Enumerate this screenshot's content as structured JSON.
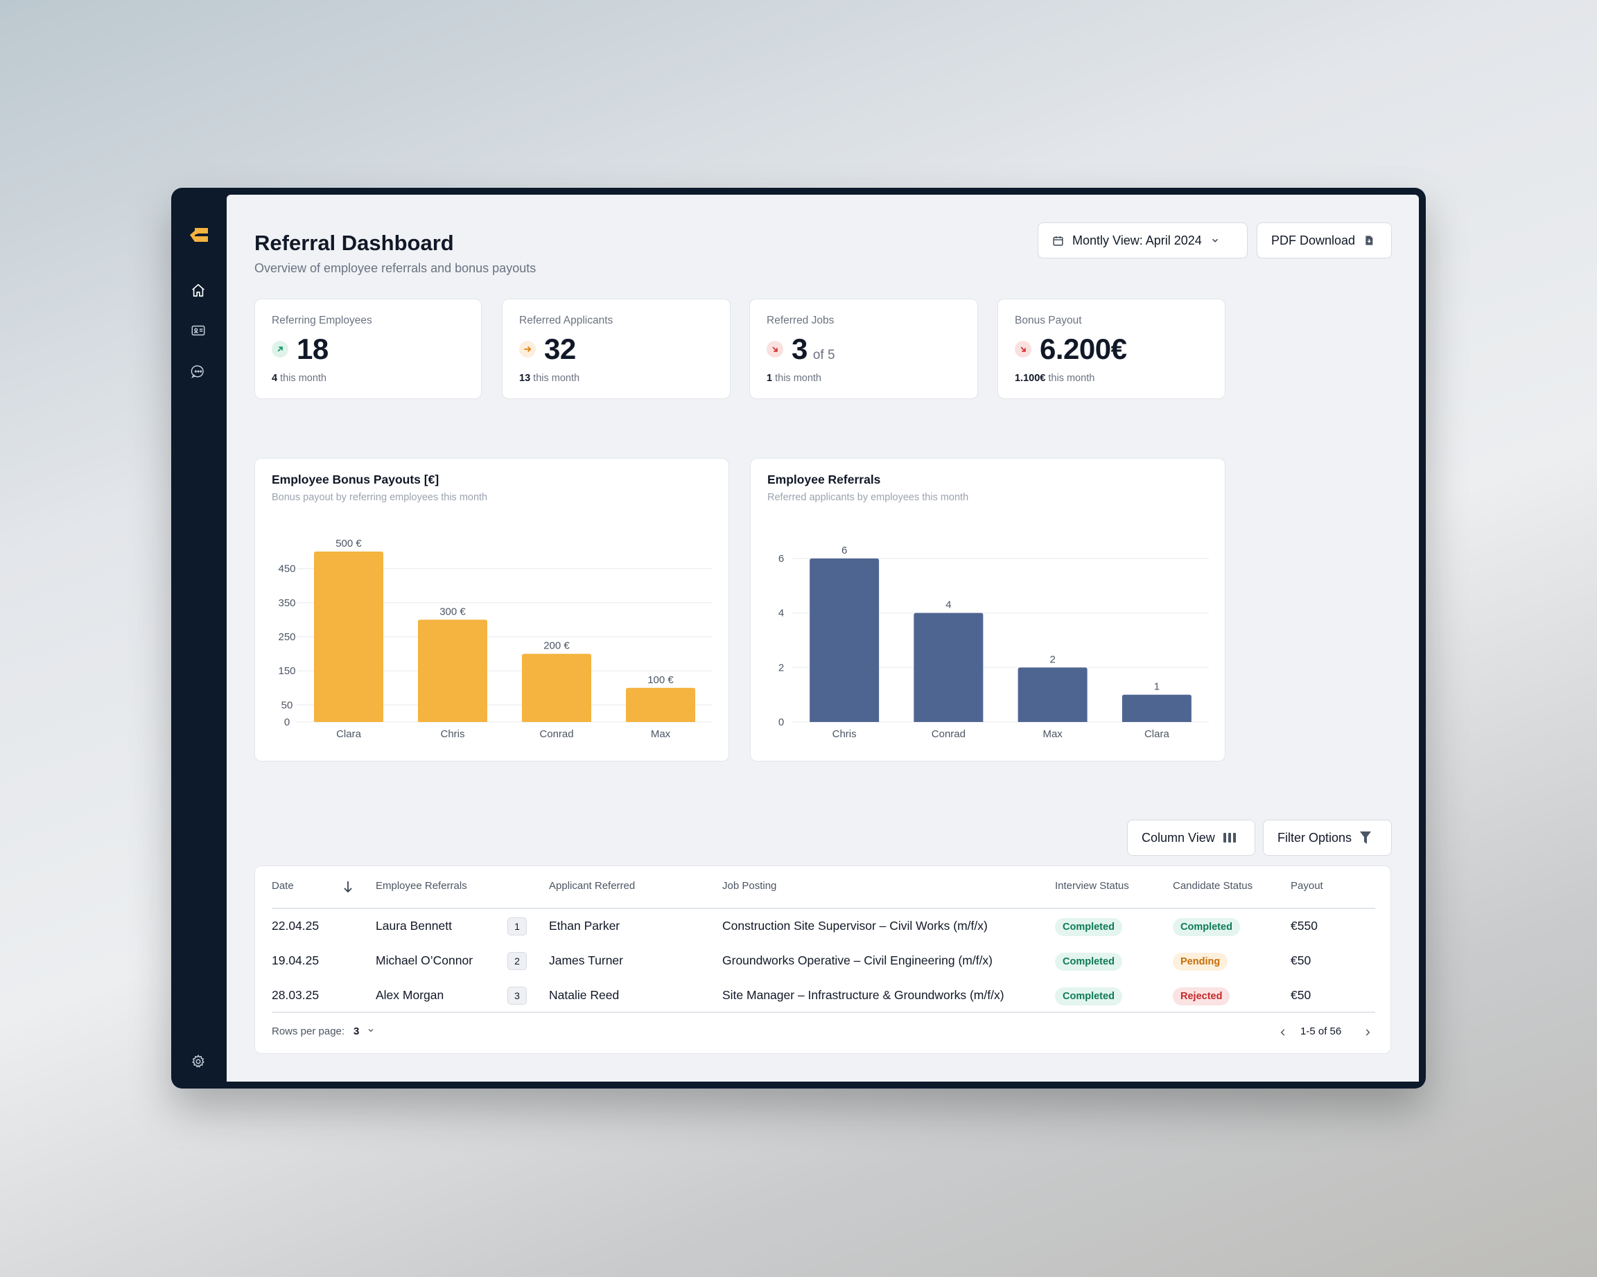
{
  "header": {
    "title": "Referral Dashboard",
    "subtitle": "Overview of employee referrals and bonus payouts",
    "month_button_label": "Montly View: April 2024",
    "pdf_button_label": "PDF Download"
  },
  "sidebar": {
    "items": [
      {
        "icon": "home-icon"
      },
      {
        "icon": "id-card-icon"
      },
      {
        "icon": "chat-icon"
      }
    ],
    "bottom_icon": "gear-icon"
  },
  "kpis": [
    {
      "label": "Referring Employees",
      "value": "18",
      "suffix": "",
      "sub_value": "4",
      "sub_text": " this month",
      "trend": "up",
      "icon": "arrow-up-right-icon"
    },
    {
      "label": "Referred Applicants",
      "value": "32",
      "suffix": "",
      "sub_value": "13",
      "sub_text": " this month",
      "trend": "flat",
      "icon": "arrow-right-icon"
    },
    {
      "label": "Referred Jobs",
      "value": "3",
      "suffix": "of 5",
      "sub_value": "1",
      "sub_text": " this month",
      "trend": "down",
      "icon": "arrow-down-right-icon"
    },
    {
      "label": "Bonus Payout",
      "value": "6.200€",
      "suffix": "",
      "sub_value": "1.100€",
      "sub_text": " this month",
      "trend": "down",
      "icon": "arrow-down-right-icon"
    }
  ],
  "colors": {
    "bonus_bar": "#f5b33f",
    "referral_bar": "#4f6591",
    "trend_up_bg": "#dff3ea",
    "trend_up_fg": "#0f9a66",
    "trend_flat_bg": "#fdeedd",
    "trend_flat_fg": "#e07f0b",
    "trend_down_bg": "#fbe0e0",
    "trend_down_fg": "#d32f2f"
  },
  "chart_data": [
    {
      "type": "bar",
      "title": "Employee Bonus Payouts [€]",
      "subtitle": "Bonus payout by referring employees this month",
      "categories": [
        "Clara",
        "Chris",
        "Conrad",
        "Max"
      ],
      "values": [
        500,
        300,
        200,
        100
      ],
      "data_labels": [
        "500 €",
        "300 €",
        "200 €",
        "100 €"
      ],
      "y_ticks": [
        0,
        50,
        150,
        250,
        350,
        450
      ],
      "ylim": [
        0,
        500
      ],
      "grid": true
    },
    {
      "type": "bar",
      "title": "Employee Referrals",
      "subtitle": "Referred applicants by employees this month",
      "categories": [
        "Chris",
        "Conrad",
        "Max",
        "Clara"
      ],
      "values": [
        6,
        4,
        2,
        1
      ],
      "data_labels": [
        "6",
        "4",
        "2",
        "1"
      ],
      "y_ticks": [
        0,
        2,
        4,
        6
      ],
      "ylim": [
        0,
        6
      ],
      "grid": true
    }
  ],
  "table_controls": {
    "column_view_label": "Column View",
    "filter_label": "Filter Options"
  },
  "table": {
    "columns": [
      "Date",
      "Employee Referrals",
      "Applicant Referred",
      "Job Posting",
      "Interview Status",
      "Candidate Status",
      "Payout"
    ],
    "rows": [
      {
        "date": "22.04.25",
        "employee": "Laura Bennett",
        "count": "1",
        "applicant": "Ethan Parker",
        "job": "Construction Site Supervisor – Civil Works (m/f/x)",
        "interview": "Completed",
        "candidate": "Completed",
        "candidate_kind": "completed",
        "payout": "€550"
      },
      {
        "date": "19.04.25",
        "employee": "Michael O’Connor",
        "count": "2",
        "applicant": "James Turner",
        "job": "Groundworks Operative – Civil Engineering (m/f/x)",
        "interview": "Completed",
        "candidate": "Pending",
        "candidate_kind": "pending",
        "payout": "€50"
      },
      {
        "date": "28.03.25",
        "employee": "Alex Morgan",
        "count": "3",
        "applicant": "Natalie Reed",
        "job": "Site Manager – Infrastructure & Groundworks (m/f/x)",
        "interview": "Completed",
        "candidate": "Rejected",
        "candidate_kind": "rejected",
        "payout": "€50"
      }
    ],
    "rows_per_page_label": "Rows per page:",
    "rows_per_page_value": "3",
    "pagination_text": "1-5 of 56"
  }
}
